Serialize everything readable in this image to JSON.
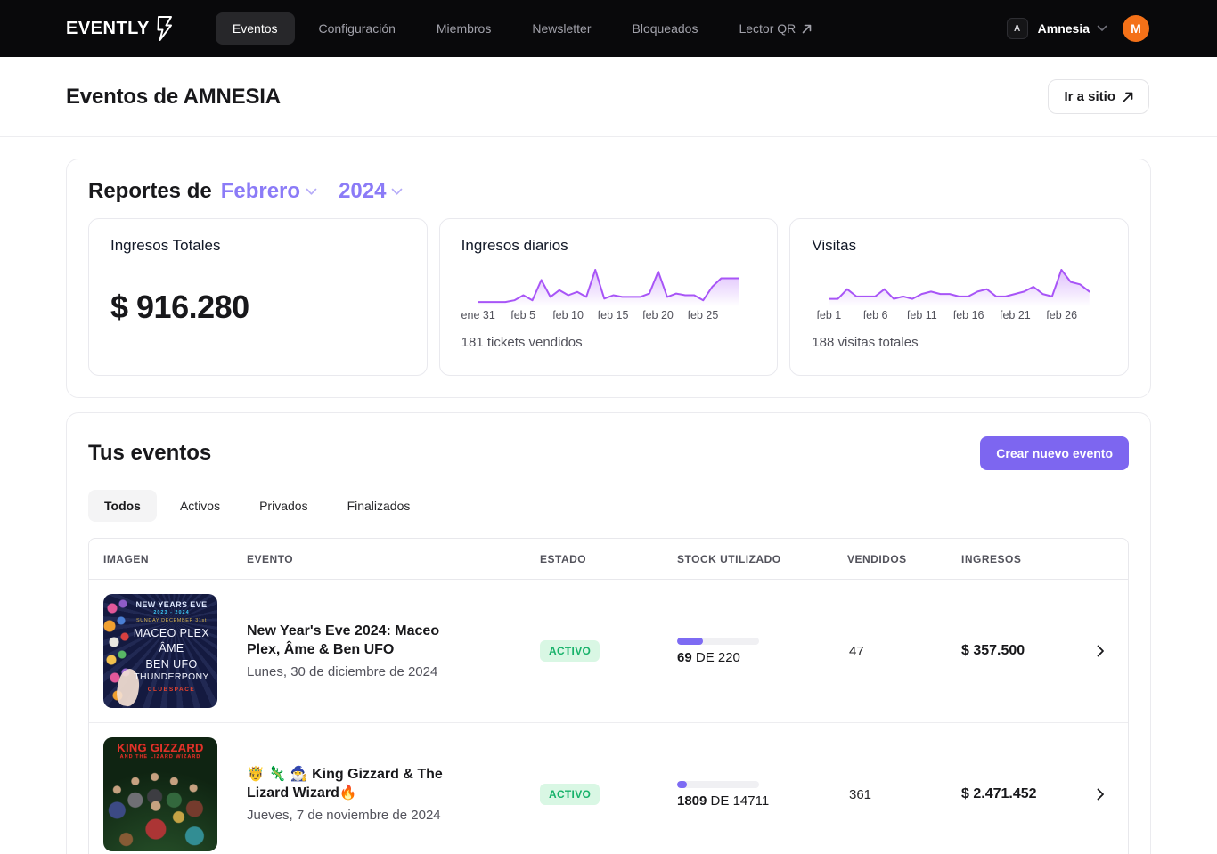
{
  "colors": {
    "accent": "#7d66f0",
    "chart_purple": "#a855f7",
    "status_green": "#17b26a",
    "status_green_bg": "#d9f7e4",
    "avatar_orange": "#f47118",
    "dropdown_purple": "#8b7bf7"
  },
  "nav": {
    "logo": "EVENTLY",
    "items": [
      {
        "label": "Eventos",
        "active": true
      },
      {
        "label": "Configuración",
        "active": false
      },
      {
        "label": "Miembros",
        "active": false
      },
      {
        "label": "Newsletter",
        "active": false
      },
      {
        "label": "Bloqueados",
        "active": false
      },
      {
        "label": "Lector QR",
        "active": false,
        "external": true
      }
    ],
    "workspace": {
      "badge": "A",
      "name": "Amnesia"
    },
    "avatar_initial": "M"
  },
  "header": {
    "title": "Eventos de AMNESIA",
    "site_button": "Ir a sitio"
  },
  "reports": {
    "title_prefix": "Reportes de",
    "month": "Febrero",
    "year": "2024",
    "total_income": {
      "title": "Ingresos Totales",
      "value": "$ 916.280"
    }
  },
  "chart_data": [
    {
      "type": "area",
      "title": "Ingresos diarios",
      "caption": "181 tickets vendidos",
      "color": "#a855f7",
      "ylim": [
        0,
        20
      ],
      "x_tick_labels": [
        "ene 31",
        "feb 5",
        "feb 10",
        "feb 15",
        "feb 20",
        "feb 25"
      ],
      "ticks": [
        {
          "label": "ene 31",
          "i": 0
        },
        {
          "label": "feb 5",
          "i": 5
        },
        {
          "label": "feb 10",
          "i": 10
        },
        {
          "label": "feb 15",
          "i": 15
        },
        {
          "label": "feb 20",
          "i": 20
        },
        {
          "label": "feb 25",
          "i": 25
        }
      ],
      "values": [
        1,
        1,
        1,
        1,
        2,
        5,
        2,
        14,
        4,
        8,
        5,
        7,
        4,
        20,
        3,
        5,
        4,
        4,
        4,
        6,
        19,
        4,
        6,
        5,
        5,
        2,
        10,
        15,
        15,
        15
      ]
    },
    {
      "type": "area",
      "title": "Visitas",
      "caption": "188 visitas totales",
      "color": "#a855f7",
      "ylim": [
        0,
        14
      ],
      "x_tick_labels": [
        "feb 1",
        "feb 6",
        "feb 11",
        "feb 16",
        "feb 21",
        "feb 26"
      ],
      "ticks": [
        {
          "label": "feb 1",
          "i": 0
        },
        {
          "label": "feb 6",
          "i": 5
        },
        {
          "label": "feb 11",
          "i": 10
        },
        {
          "label": "feb 16",
          "i": 15
        },
        {
          "label": "feb 21",
          "i": 20
        },
        {
          "label": "feb 26",
          "i": 25
        }
      ],
      "values": [
        2,
        2,
        6,
        3,
        3,
        3,
        6,
        2,
        3,
        2,
        4,
        5,
        4,
        4,
        3,
        3,
        5,
        6,
        3,
        3,
        4,
        5,
        7,
        4,
        3,
        14,
        9,
        8,
        5
      ]
    }
  ],
  "events": {
    "title": "Tus eventos",
    "create_button": "Crear nuevo evento",
    "tabs": [
      {
        "label": "Todos",
        "active": true
      },
      {
        "label": "Activos",
        "active": false
      },
      {
        "label": "Privados",
        "active": false
      },
      {
        "label": "Finalizados",
        "active": false
      }
    ],
    "table": {
      "columns": [
        "IMAGEN",
        "EVENTO",
        "ESTADO",
        "STOCK UTILIZADO",
        "VENDIDOS",
        "INGRESOS"
      ],
      "rows": [
        {
          "title": "New Year's Eve 2024: Maceo Plex, Âme & Ben UFO",
          "date": "Lunes, 30 de diciembre de 2024",
          "status": "ACTIVO",
          "stock": {
            "used": "69",
            "sep": "DE",
            "total": "220",
            "percent": 31.4
          },
          "vendidos": "47",
          "ingresos": "$ 357.500",
          "poster": {
            "l1": "NEW YEARS EVE",
            "l2": "2023 - 2024",
            "l3": "SUNDAY DECEMBER 31st",
            "l4": "MACEO PLEX",
            "l5": "ÂME",
            "l6": "BEN UFO",
            "l7": "THUNDERPONY",
            "l8": "CLUBSPACE"
          }
        },
        {
          "title": "🤴 🦎 🧙‍♂️ King Gizzard & The Lizard Wizard🔥",
          "date": "Jueves, 7 de noviembre de 2024",
          "status": "ACTIVO",
          "stock": {
            "used": "1809",
            "sep": "DE",
            "total": "14711",
            "percent": 12.3
          },
          "vendidos": "361",
          "ingresos": "$ 2.471.452",
          "poster": {
            "l1": "KING GIZZARD",
            "l2": "AND THE LIZARD WIZARD"
          }
        }
      ]
    }
  }
}
